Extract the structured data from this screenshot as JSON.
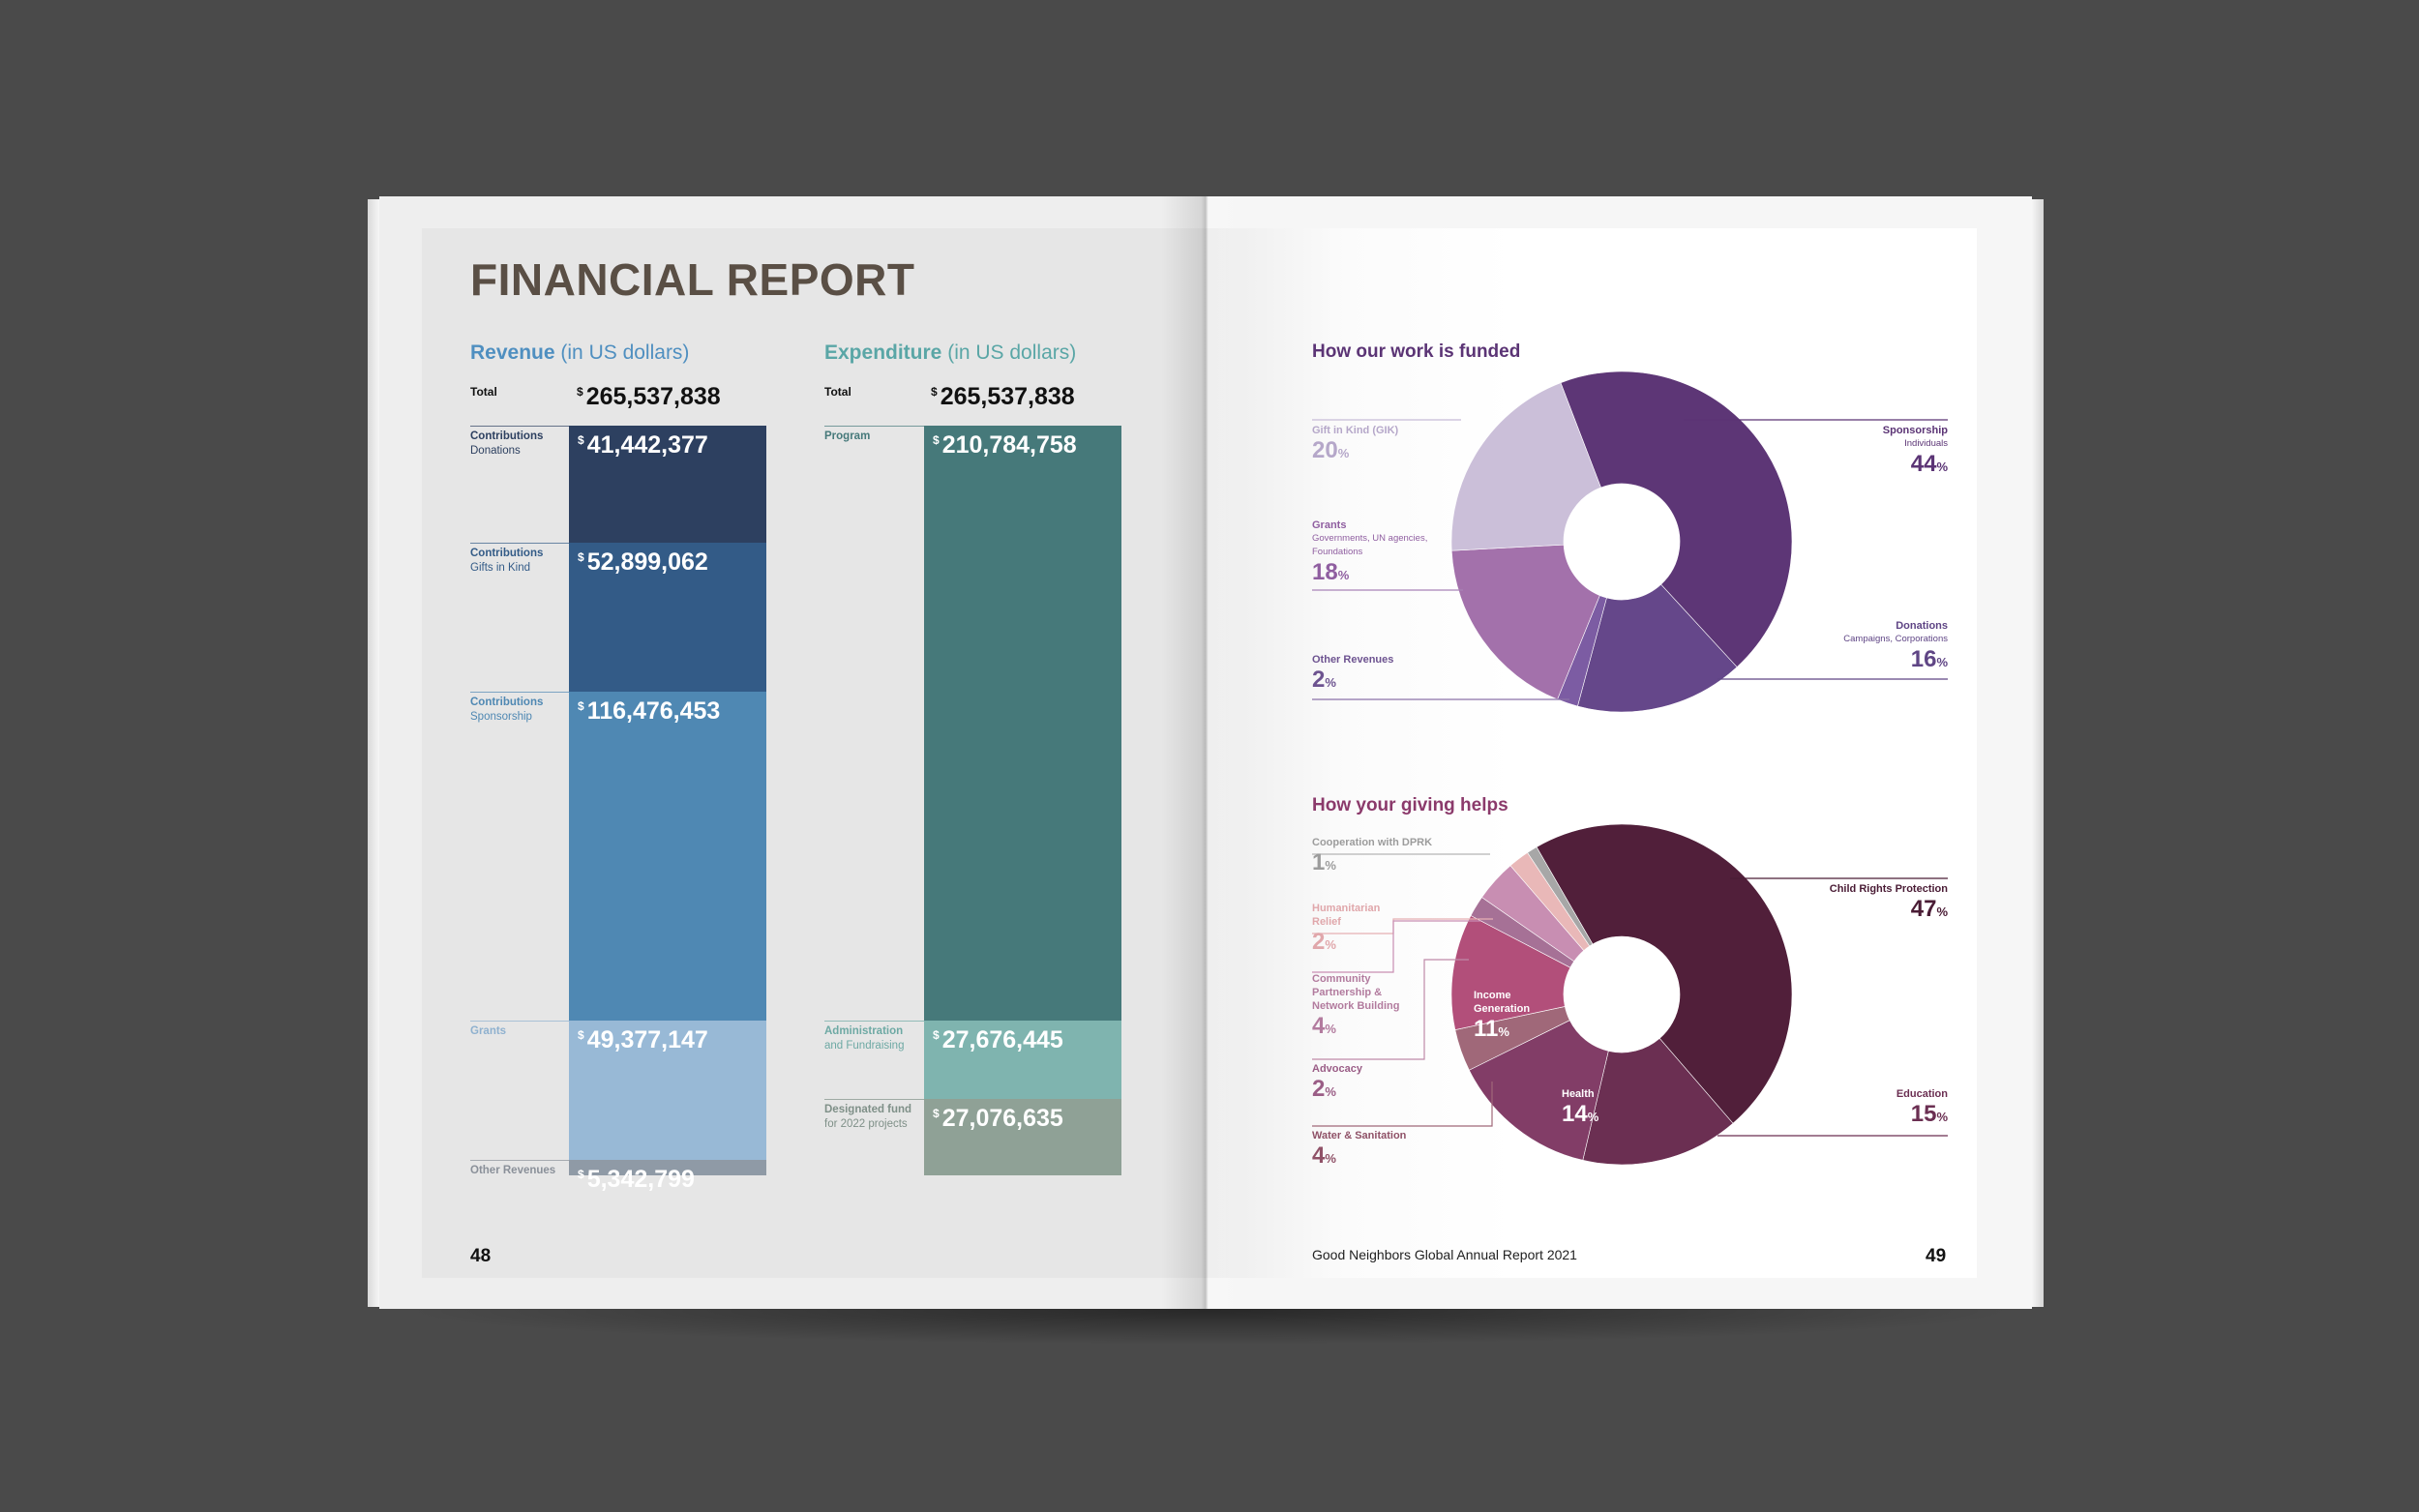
{
  "colors": {
    "revenue_head": "#4f8fc0",
    "expenditure_head": "#5aa6a6",
    "funded_head": "#5b3475",
    "giving_head": "#8b3a6b"
  },
  "left_page": {
    "title": "FINANCIAL REPORT",
    "page_number": "48",
    "revenue": {
      "heading": "Revenue",
      "heading_paren": "(in US dollars)",
      "total_label": "Total",
      "currency": "$",
      "total_value": "265,537,838",
      "segments": [
        {
          "label1": "Contributions",
          "label2": "Donations",
          "value": "41,442,377",
          "amount": 41442377,
          "color": "#2d4060",
          "label_color": "#2d4060",
          "text_color": "#ffffff"
        },
        {
          "label1": "Contributions",
          "label2": "Gifts in Kind",
          "value": "52,899,062",
          "amount": 52899062,
          "color": "#335b87",
          "label_color": "#335b87",
          "text_color": "#ffffff"
        },
        {
          "label1": "Contributions",
          "label2": "Sponsorship",
          "value": "116,476,453",
          "amount": 116476453,
          "color": "#4f88b3",
          "label_color": "#4f88b3",
          "text_color": "#ffffff"
        },
        {
          "label1": "Grants",
          "label2": "",
          "value": "49,377,147",
          "amount": 49377147,
          "color": "#98b9d6",
          "label_color": "#8fb1cf",
          "text_color": "#ffffff"
        },
        {
          "label1": "Other Revenues",
          "label2": "",
          "value": "5,342,799",
          "amount": 5342799,
          "color": "#8f9aa6",
          "label_color": "#8a9099",
          "text_color": "#ffffff"
        }
      ]
    },
    "expenditure": {
      "heading": "Expenditure",
      "heading_paren": "(in US dollars)",
      "total_label": "Total",
      "currency": "$",
      "total_value": "265,537,838",
      "segments": [
        {
          "label1": "Program",
          "label2": "",
          "value": "210,784,758",
          "amount": 210784758,
          "color": "#46797a",
          "label_color": "#46797a",
          "text_color": "#ffffff"
        },
        {
          "label1": "Administration",
          "label2": "and Fundraising",
          "value": "27,676,445",
          "amount": 27676445,
          "color": "#7fb4af",
          "label_color": "#6ea9a4",
          "text_color": "#ffffff"
        },
        {
          "label1": "Designated fund",
          "label2": "for 2022 projects",
          "value": "27,076,635",
          "amount": 27076635,
          "color": "#8fa196",
          "label_color": "#7f9088",
          "text_color": "#ffffff"
        }
      ]
    }
  },
  "right_page": {
    "page_number": "49",
    "footer": "Good Neighbors Global Annual Report 2021"
  },
  "chart_data": [
    {
      "type": "bar",
      "title": "Revenue (in US dollars)",
      "stacked": true,
      "categories": [
        "Contributions Donations",
        "Contributions Gifts in Kind",
        "Contributions Sponsorship",
        "Grants",
        "Other Revenues"
      ],
      "values": [
        41442377,
        52899062,
        116476453,
        49377147,
        5342799
      ],
      "total": 265537838
    },
    {
      "type": "bar",
      "title": "Expenditure (in US dollars)",
      "stacked": true,
      "categories": [
        "Program",
        "Administration and Fundraising",
        "Designated fund for 2022 projects"
      ],
      "values": [
        210784758,
        27676445,
        27076635
      ],
      "total": 265537838
    },
    {
      "type": "pie",
      "title": "How our work is funded",
      "slices": [
        {
          "name": "Sponsorship",
          "sub": "Individuals",
          "pct": "44",
          "value": 44,
          "color": "#5d3676",
          "label_color": "#5b3475"
        },
        {
          "name": "Donations",
          "sub": "Campaigns, Corporations",
          "pct": "16",
          "value": 16,
          "color": "#65478a",
          "label_color": "#5f4585"
        },
        {
          "name": "Other Revenues",
          "sub": "",
          "pct": "2",
          "value": 2,
          "color": "#7c5ca3",
          "label_color": "#6d5390"
        },
        {
          "name": "Grants",
          "sub": "Governments, UN agencies, Foundations",
          "pct": "18",
          "value": 18,
          "color": "#a371ab",
          "label_color": "#8f5ea0"
        },
        {
          "name": "Gift in Kind (GIK)",
          "sub": "",
          "pct": "20",
          "value": 20,
          "color": "#cbbfd9",
          "label_color": "#b5a7c9"
        }
      ]
    },
    {
      "type": "pie",
      "title": "How your giving helps",
      "slices": [
        {
          "name": "Child Rights Protection",
          "pct": "47",
          "value": 47,
          "color": "#511f3a",
          "label_color": "#4a1c35"
        },
        {
          "name": "Education",
          "pct": "15",
          "value": 15,
          "color": "#6b2f52",
          "label_color": "#6b2f52"
        },
        {
          "name": "Health",
          "pct": "14",
          "value": 14,
          "color": "#823d67",
          "label_color": "#ffffff"
        },
        {
          "name": "Water & Sanitation",
          "pct": "4",
          "value": 4,
          "color": "#a06879",
          "label_color": "#8f5167"
        },
        {
          "name": "Income Generation",
          "pct": "11",
          "value": 11,
          "color": "#b24f7a",
          "label_color": "#ffffff"
        },
        {
          "name": "Advocacy",
          "pct": "2",
          "value": 2,
          "color": "#a67196",
          "label_color": "#9a5d86"
        },
        {
          "name": "Community Partnership & Network Building",
          "pct": "4",
          "value": 4,
          "color": "#c88eb2",
          "label_color": "#b27b9e"
        },
        {
          "name": "Humanitarian Relief",
          "pct": "2",
          "value": 2,
          "color": "#e9b8b8",
          "label_color": "#e0a7ab"
        },
        {
          "name": "Cooperation with DPRK",
          "pct": "1",
          "value": 1,
          "color": "#a7a7a7",
          "label_color": "#9c9c9c"
        }
      ]
    }
  ],
  "pct_sign": "%"
}
